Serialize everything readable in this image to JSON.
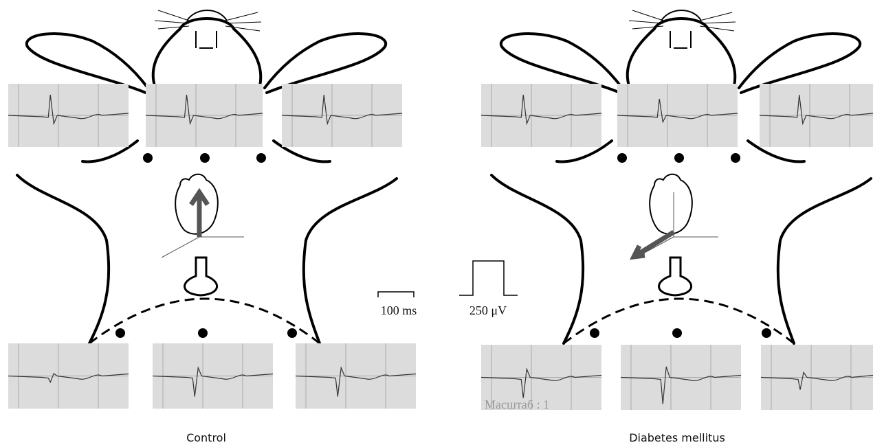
{
  "panels": [
    {
      "label": "Control"
    },
    {
      "label": "Diabetes mellitus"
    }
  ],
  "scale_bars": {
    "time": "100 ms",
    "voltage": "250 μV"
  },
  "watermark": "Масштаб : 1"
}
